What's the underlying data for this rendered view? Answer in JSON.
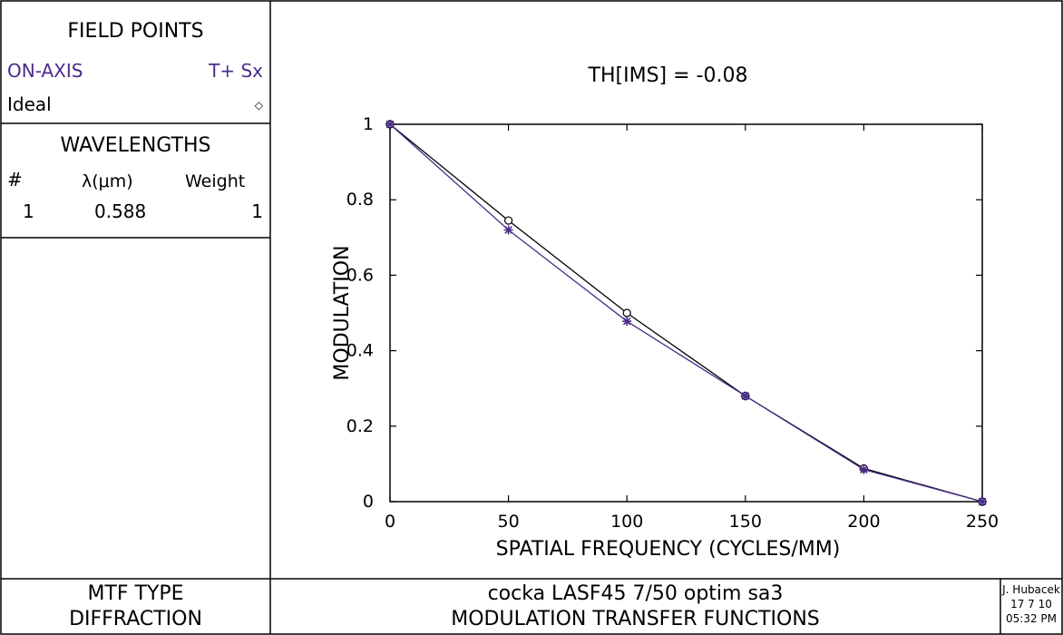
{
  "left_panel": {
    "field_points": {
      "title": "FIELD POINTS",
      "rows": [
        {
          "label": "ON-AXIS",
          "marker": "T+ Sx"
        },
        {
          "label": "Ideal",
          "marker": "◇"
        }
      ]
    },
    "wavelengths": {
      "title": "WAVELENGTHS",
      "headers": [
        "#",
        "λ(μm)",
        "Weight"
      ],
      "rows": [
        {
          "index": "1",
          "wavelength": "0.588",
          "weight": "1"
        }
      ]
    }
  },
  "footer": {
    "mtf_type_label": "MTF TYPE",
    "mtf_type_value": "DIFFRACTION",
    "title_line1": "cocka LASF45 7/50 optim sa3",
    "title_line2": "MODULATION TRANSFER FUNCTIONS",
    "author": "J. Hubacek",
    "date": "17 7 10",
    "time": "05:32 PM"
  },
  "colors": {
    "purple": "#4b2c8c",
    "black": "#000000",
    "frame": "#000000"
  },
  "chart_data": {
    "type": "line",
    "title": "TH[IMS] = -0.08",
    "xlabel": "SPATIAL FREQUENCY (CYCLES/MM)",
    "ylabel": "MODULATION",
    "xlim": [
      0,
      250
    ],
    "ylim": [
      0,
      1
    ],
    "x_ticks": [
      0,
      50,
      100,
      150,
      200,
      250
    ],
    "y_ticks": [
      0,
      0.2,
      0.4,
      0.6,
      0.8,
      1
    ],
    "x_tick_labels": [
      "0",
      "50",
      "100",
      "150",
      "200",
      "250"
    ],
    "y_tick_labels": [
      "0",
      "0.2",
      "0.4",
      "0.6",
      "0.8",
      "1"
    ],
    "grid": false,
    "series": [
      {
        "key": "ideal",
        "marker": "circle",
        "color": "#000000",
        "x": [
          0,
          50,
          100,
          150,
          200,
          250
        ],
        "y": [
          1.0,
          0.745,
          0.5,
          0.28,
          0.088,
          0.0
        ]
      },
      {
        "key": "on-axis",
        "marker": "asterisk",
        "color": "#4b2c8c",
        "x": [
          0,
          50,
          100,
          150,
          200,
          250
        ],
        "y": [
          1.0,
          0.72,
          0.478,
          0.28,
          0.085,
          0.0
        ]
      }
    ]
  }
}
